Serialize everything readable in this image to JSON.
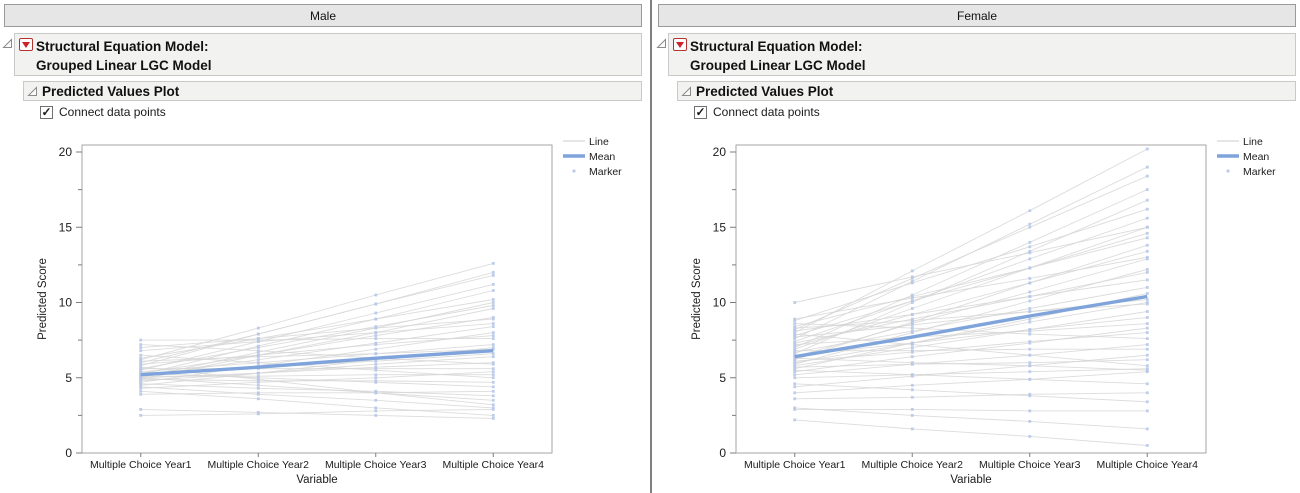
{
  "icons": {
    "checkmark": "✓"
  },
  "colors": {
    "mean_line": "#7ea4db",
    "subject_line": "#d6d6d6",
    "marker": "#b7c8e8",
    "frame_stroke": "#a6a6a6",
    "tick_stroke": "#7c7c7c",
    "accent_red": "#cc2229"
  },
  "panels": [
    {
      "group_label": "Male",
      "model_title_line1": "Structural Equation Model:",
      "model_title_line2": "Grouped Linear LGC Model",
      "plot_title": "Predicted Values Plot",
      "checkbox_label": "Connect data points",
      "checkbox_checked": true
    },
    {
      "group_label": "Female",
      "model_title_line1": "Structural Equation Model:",
      "model_title_line2": "Grouped Linear LGC Model",
      "plot_title": "Predicted Values Plot",
      "checkbox_label": "Connect data points",
      "checkbox_checked": true
    }
  ],
  "chart_data": [
    {
      "type": "line",
      "group": "Male",
      "title": "Predicted Values Plot",
      "x_categories": [
        "Multiple Choice Year1",
        "Multiple Choice Year2",
        "Multiple Choice Year3",
        "Multiple Choice Year4"
      ],
      "xlabel": "Variable",
      "ylabel": "Predicted Score",
      "ylim": [
        0,
        20
      ],
      "y_major_ticks": [
        0,
        5,
        10,
        15,
        20
      ],
      "y_minor_ticks": [
        2.5,
        7.5,
        12.5,
        17.5
      ],
      "grid": false,
      "legend_position": "top-right",
      "legend": [
        {
          "label": "Line",
          "type": "thin-line"
        },
        {
          "label": "Mean",
          "type": "thick-line"
        },
        {
          "label": "Marker",
          "type": "marker"
        }
      ],
      "mean": [
        5.2,
        5.7,
        6.3,
        6.8
      ],
      "subject_lines": [
        [
          6.2,
          8.3,
          10.5,
          12.6
        ],
        [
          5.8,
          7.9,
          9.9,
          12.0
        ],
        [
          6.0,
          7.9,
          9.9,
          11.8
        ],
        [
          5.5,
          7.4,
          9.3,
          11.2
        ],
        [
          5.2,
          7.1,
          8.9,
          10.8
        ],
        [
          6.3,
          7.6,
          8.9,
          10.2
        ],
        [
          5.0,
          6.7,
          8.3,
          10.0
        ],
        [
          5.6,
          7.0,
          8.4,
          9.8
        ],
        [
          4.9,
          6.5,
          8.0,
          9.6
        ],
        [
          5.3,
          6.5,
          7.8,
          9.0
        ],
        [
          7.0,
          7.6,
          8.3,
          8.9
        ],
        [
          6.8,
          7.4,
          8.0,
          8.6
        ],
        [
          5.1,
          6.2,
          7.3,
          8.4
        ],
        [
          4.7,
          5.8,
          6.9,
          8.0
        ],
        [
          5.9,
          6.5,
          7.2,
          7.8
        ],
        [
          7.5,
          7.5,
          7.6,
          7.6
        ],
        [
          5.4,
          6.0,
          6.6,
          7.2
        ],
        [
          4.5,
          5.3,
          6.2,
          7.0
        ],
        [
          6.1,
          6.4,
          6.6,
          6.9
        ],
        [
          5.2,
          5.7,
          6.1,
          6.6
        ],
        [
          4.8,
          5.3,
          5.9,
          6.4
        ],
        [
          5.0,
          5.3,
          5.7,
          6.0
        ],
        [
          7.2,
          6.8,
          6.3,
          5.9
        ],
        [
          5.6,
          5.6,
          5.6,
          5.6
        ],
        [
          4.3,
          4.7,
          5.0,
          5.4
        ],
        [
          5.1,
          5.1,
          5.2,
          5.2
        ],
        [
          6.5,
          6.0,
          5.5,
          5.0
        ],
        [
          4.9,
          4.8,
          4.8,
          4.7
        ],
        [
          5.3,
          5.0,
          4.7,
          4.4
        ],
        [
          3.9,
          4.0,
          4.0,
          4.1
        ],
        [
          4.6,
          4.3,
          4.1,
          3.8
        ],
        [
          5.0,
          4.5,
          4.0,
          3.5
        ],
        [
          5.7,
          4.9,
          4.0,
          3.2
        ],
        [
          4.4,
          3.9,
          3.5,
          3.0
        ],
        [
          2.5,
          2.6,
          2.8,
          2.9
        ],
        [
          4.1,
          3.6,
          3.0,
          2.5
        ],
        [
          2.9,
          2.7,
          2.5,
          2.3
        ]
      ]
    },
    {
      "type": "line",
      "group": "Female",
      "title": "Predicted Values Plot",
      "x_categories": [
        "Multiple Choice Year1",
        "Multiple Choice Year2",
        "Multiple Choice Year3",
        "Multiple Choice Year4"
      ],
      "xlabel": "Variable",
      "ylabel": "Predicted Score",
      "ylim": [
        0,
        20
      ],
      "y_major_ticks": [
        0,
        5,
        10,
        15,
        20
      ],
      "y_minor_ticks": [
        2.5,
        7.5,
        12.5,
        17.5
      ],
      "grid": false,
      "legend_position": "top-right",
      "legend": [
        {
          "label": "Line",
          "type": "thin-line"
        },
        {
          "label": "Mean",
          "type": "thick-line"
        },
        {
          "label": "Marker",
          "type": "marker"
        }
      ],
      "mean": [
        6.4,
        7.7,
        9.1,
        10.4
      ],
      "subject_lines": [
        [
          8.0,
          12.1,
          16.1,
          20.2
        ],
        [
          7.6,
          11.4,
          15.2,
          19.0
        ],
        [
          8.2,
          11.6,
          15.0,
          18.4
        ],
        [
          7.0,
          10.5,
          14.0,
          17.5
        ],
        [
          6.6,
          10.0,
          13.4,
          16.8
        ],
        [
          8.8,
          11.3,
          13.7,
          16.2
        ],
        [
          7.4,
          10.1,
          12.9,
          15.6
        ],
        [
          10.0,
          11.7,
          13.3,
          15.0
        ],
        [
          6.9,
          9.6,
          12.3,
          15.0
        ],
        [
          7.8,
          10.1,
          12.3,
          14.6
        ],
        [
          8.4,
          10.4,
          12.3,
          14.3
        ],
        [
          6.2,
          8.7,
          11.3,
          13.8
        ],
        [
          7.1,
          9.2,
          11.3,
          13.4
        ],
        [
          8.9,
          10.3,
          11.6,
          13.0
        ],
        [
          6.4,
          8.6,
          10.7,
          12.9
        ],
        [
          5.9,
          8.0,
          10.1,
          12.2
        ],
        [
          7.3,
          8.9,
          10.4,
          12.0
        ],
        [
          8.1,
          9.2,
          10.4,
          11.5
        ],
        [
          6.7,
          8.1,
          9.6,
          11.0
        ],
        [
          5.6,
          7.3,
          8.9,
          10.6
        ],
        [
          7.7,
          8.5,
          9.4,
          10.2
        ],
        [
          6.0,
          7.3,
          8.7,
          10.0
        ],
        [
          8.3,
          8.8,
          9.4,
          9.9
        ],
        [
          5.8,
          7.0,
          8.2,
          9.4
        ],
        [
          6.5,
          7.3,
          8.2,
          9.0
        ],
        [
          7.2,
          7.7,
          8.1,
          8.6
        ],
        [
          5.4,
          6.4,
          7.3,
          8.3
        ],
        [
          6.1,
          6.7,
          7.4,
          8.0
        ],
        [
          8.6,
          8.3,
          7.9,
          7.6
        ],
        [
          5.2,
          5.9,
          6.5,
          7.2
        ],
        [
          6.8,
          6.8,
          6.9,
          6.9
        ],
        [
          4.4,
          5.1,
          5.8,
          6.5
        ],
        [
          5.7,
          5.9,
          6.0,
          6.2
        ],
        [
          7.9,
          7.2,
          6.5,
          5.8
        ],
        [
          5.0,
          5.2,
          5.4,
          5.6
        ],
        [
          6.3,
          6.0,
          5.8,
          5.5
        ],
        [
          4.0,
          4.5,
          4.9,
          5.4
        ],
        [
          5.5,
          5.2,
          4.9,
          4.6
        ],
        [
          3.6,
          3.7,
          3.9,
          4.0
        ],
        [
          4.6,
          4.2,
          3.8,
          3.4
        ],
        [
          2.9,
          2.9,
          2.8,
          2.8
        ],
        [
          3.0,
          2.5,
          2.1,
          1.6
        ],
        [
          2.2,
          1.6,
          1.1,
          0.5
        ]
      ]
    }
  ]
}
